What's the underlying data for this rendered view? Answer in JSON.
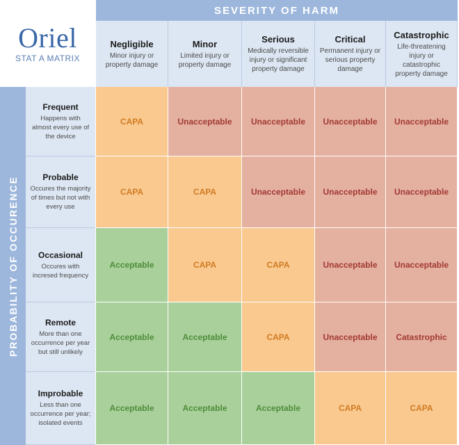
{
  "logo": {
    "wordmark": "Oriel",
    "subtitle": "STAT A MATRIX"
  },
  "severity_header": "SEVERITY OF HARM",
  "probability_header": "PROBABILITY OF OCCURENCE",
  "severity_columns": [
    {
      "title": "Negligible",
      "desc": "Minor injury or property damage"
    },
    {
      "title": "Minor",
      "desc": "Limited injury or property damage"
    },
    {
      "title": "Serious",
      "desc": "Medically reversible injury or significant property damage"
    },
    {
      "title": "Critical",
      "desc": "Permanent injury or serious property damage"
    },
    {
      "title": "Catastrophic",
      "desc": "Life-threatening injury or catastrophic property damage"
    }
  ],
  "probability_rows": [
    {
      "title": "Frequent",
      "desc": "Happens with almost every use of the device"
    },
    {
      "title": "Probable",
      "desc": "Occures the majority of times but not with every use"
    },
    {
      "title": "Occasional",
      "desc": "Occures with incresed frequency"
    },
    {
      "title": "Remote",
      "desc": "More than one occurrence per year but still unlikely"
    },
    {
      "title": "Improbable",
      "desc": "Less than one occurrence per year; isolated events"
    }
  ],
  "matrix": [
    [
      "CAPA",
      "Unacceptable",
      "Unacceptable",
      "Unacceptable",
      "Unacceptable"
    ],
    [
      "CAPA",
      "CAPA",
      "Unacceptable",
      "Unacceptable",
      "Unacceptable"
    ],
    [
      "Acceptable",
      "CAPA",
      "CAPA",
      "Unacceptable",
      "Unacceptable"
    ],
    [
      "Acceptable",
      "Acceptable",
      "CAPA",
      "Unacceptable",
      "Catastrophic"
    ],
    [
      "Acceptable",
      "Acceptable",
      "Acceptable",
      "CAPA",
      "CAPA"
    ]
  ],
  "colors": {
    "header_band": "#9db7dc",
    "label_bg": "#dde7f3",
    "Acceptable": {
      "bg": "#a9d09b",
      "fg": "#4e8c3a"
    },
    "CAPA": {
      "bg": "#f9c98f",
      "fg": "#d17b22"
    },
    "Unacceptable": {
      "bg": "#e4b09f",
      "fg": "#a23a36"
    },
    "Catastrophic": {
      "bg": "#e4b09f",
      "fg": "#a23a36"
    }
  }
}
